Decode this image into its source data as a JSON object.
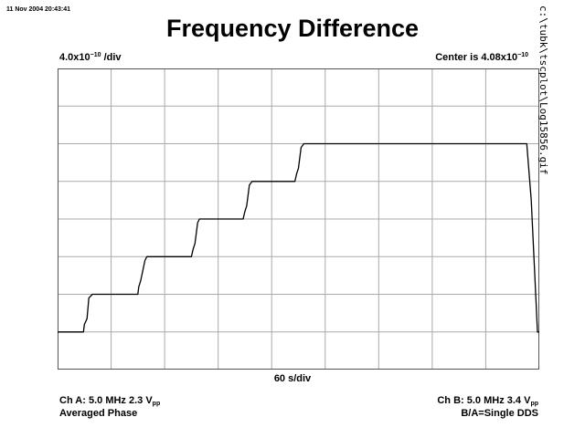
{
  "timestamp": "11 Nov 2004 20:43:41",
  "title": "Frequency Difference",
  "scale_label": {
    "mantissa": "4.0x10",
    "exponent": "−10",
    "suffix": " /div"
  },
  "center_label": {
    "prefix": "Center is 4.08x10",
    "exponent": "−10"
  },
  "file_path": "c:\\tubk\\tscplot\\Log15856.gif",
  "channel_a": {
    "line1": "Ch A: 5.0 MHz 2.3 V",
    "line1_sub": "pp",
    "line2": "Averaged Phase"
  },
  "channel_b": {
    "line1": "Ch B: 5.0 MHz 3.4 V",
    "line1_sub": "pp",
    "line2": "B/A=Single DDS"
  },
  "chart_data": {
    "type": "line",
    "title": "Frequency Difference",
    "xlabel": "60 s/div",
    "ylabel": "4.0x10⁻¹⁰ /div",
    "grid": true,
    "x_divisions": 9,
    "y_divisions": 8,
    "xlim": [
      0,
      540
    ],
    "ylim": [
      -1.6e-09,
      1.6e-09
    ],
    "center": 4.08e-10,
    "scale_per_div": 4e-10,
    "line_color": "#000000",
    "grid_color": "#aaaaaa",
    "series": [
      {
        "x": [
          0,
          29,
          30,
          33,
          35,
          39,
          90,
          91,
          93,
          98,
          100,
          150,
          152,
          154,
          157,
          159,
          208,
          210,
          212,
          215,
          218,
          266,
          268,
          270,
          273,
          276,
          294,
          295,
          526,
          531,
          538,
          540
        ],
        "y": [
          -1.2e-09,
          -1.2e-09,
          -1.12e-09,
          -1.06e-09,
          -8.4e-10,
          -8e-10,
          -8e-10,
          -7.2e-10,
          -6.6e-10,
          -4.4e-10,
          -4e-10,
          -4e-10,
          -3.2e-10,
          -2.6e-10,
          -4e-11,
          0.0,
          0.0,
          8e-11,
          1.4e-10,
          3.6e-10,
          4e-10,
          4e-10,
          4.8e-10,
          5.4e-10,
          7.6e-10,
          8e-10,
          8e-10,
          8e-10,
          8e-10,
          2e-10,
          -1.2e-09,
          -1.2e-09
        ]
      }
    ]
  }
}
